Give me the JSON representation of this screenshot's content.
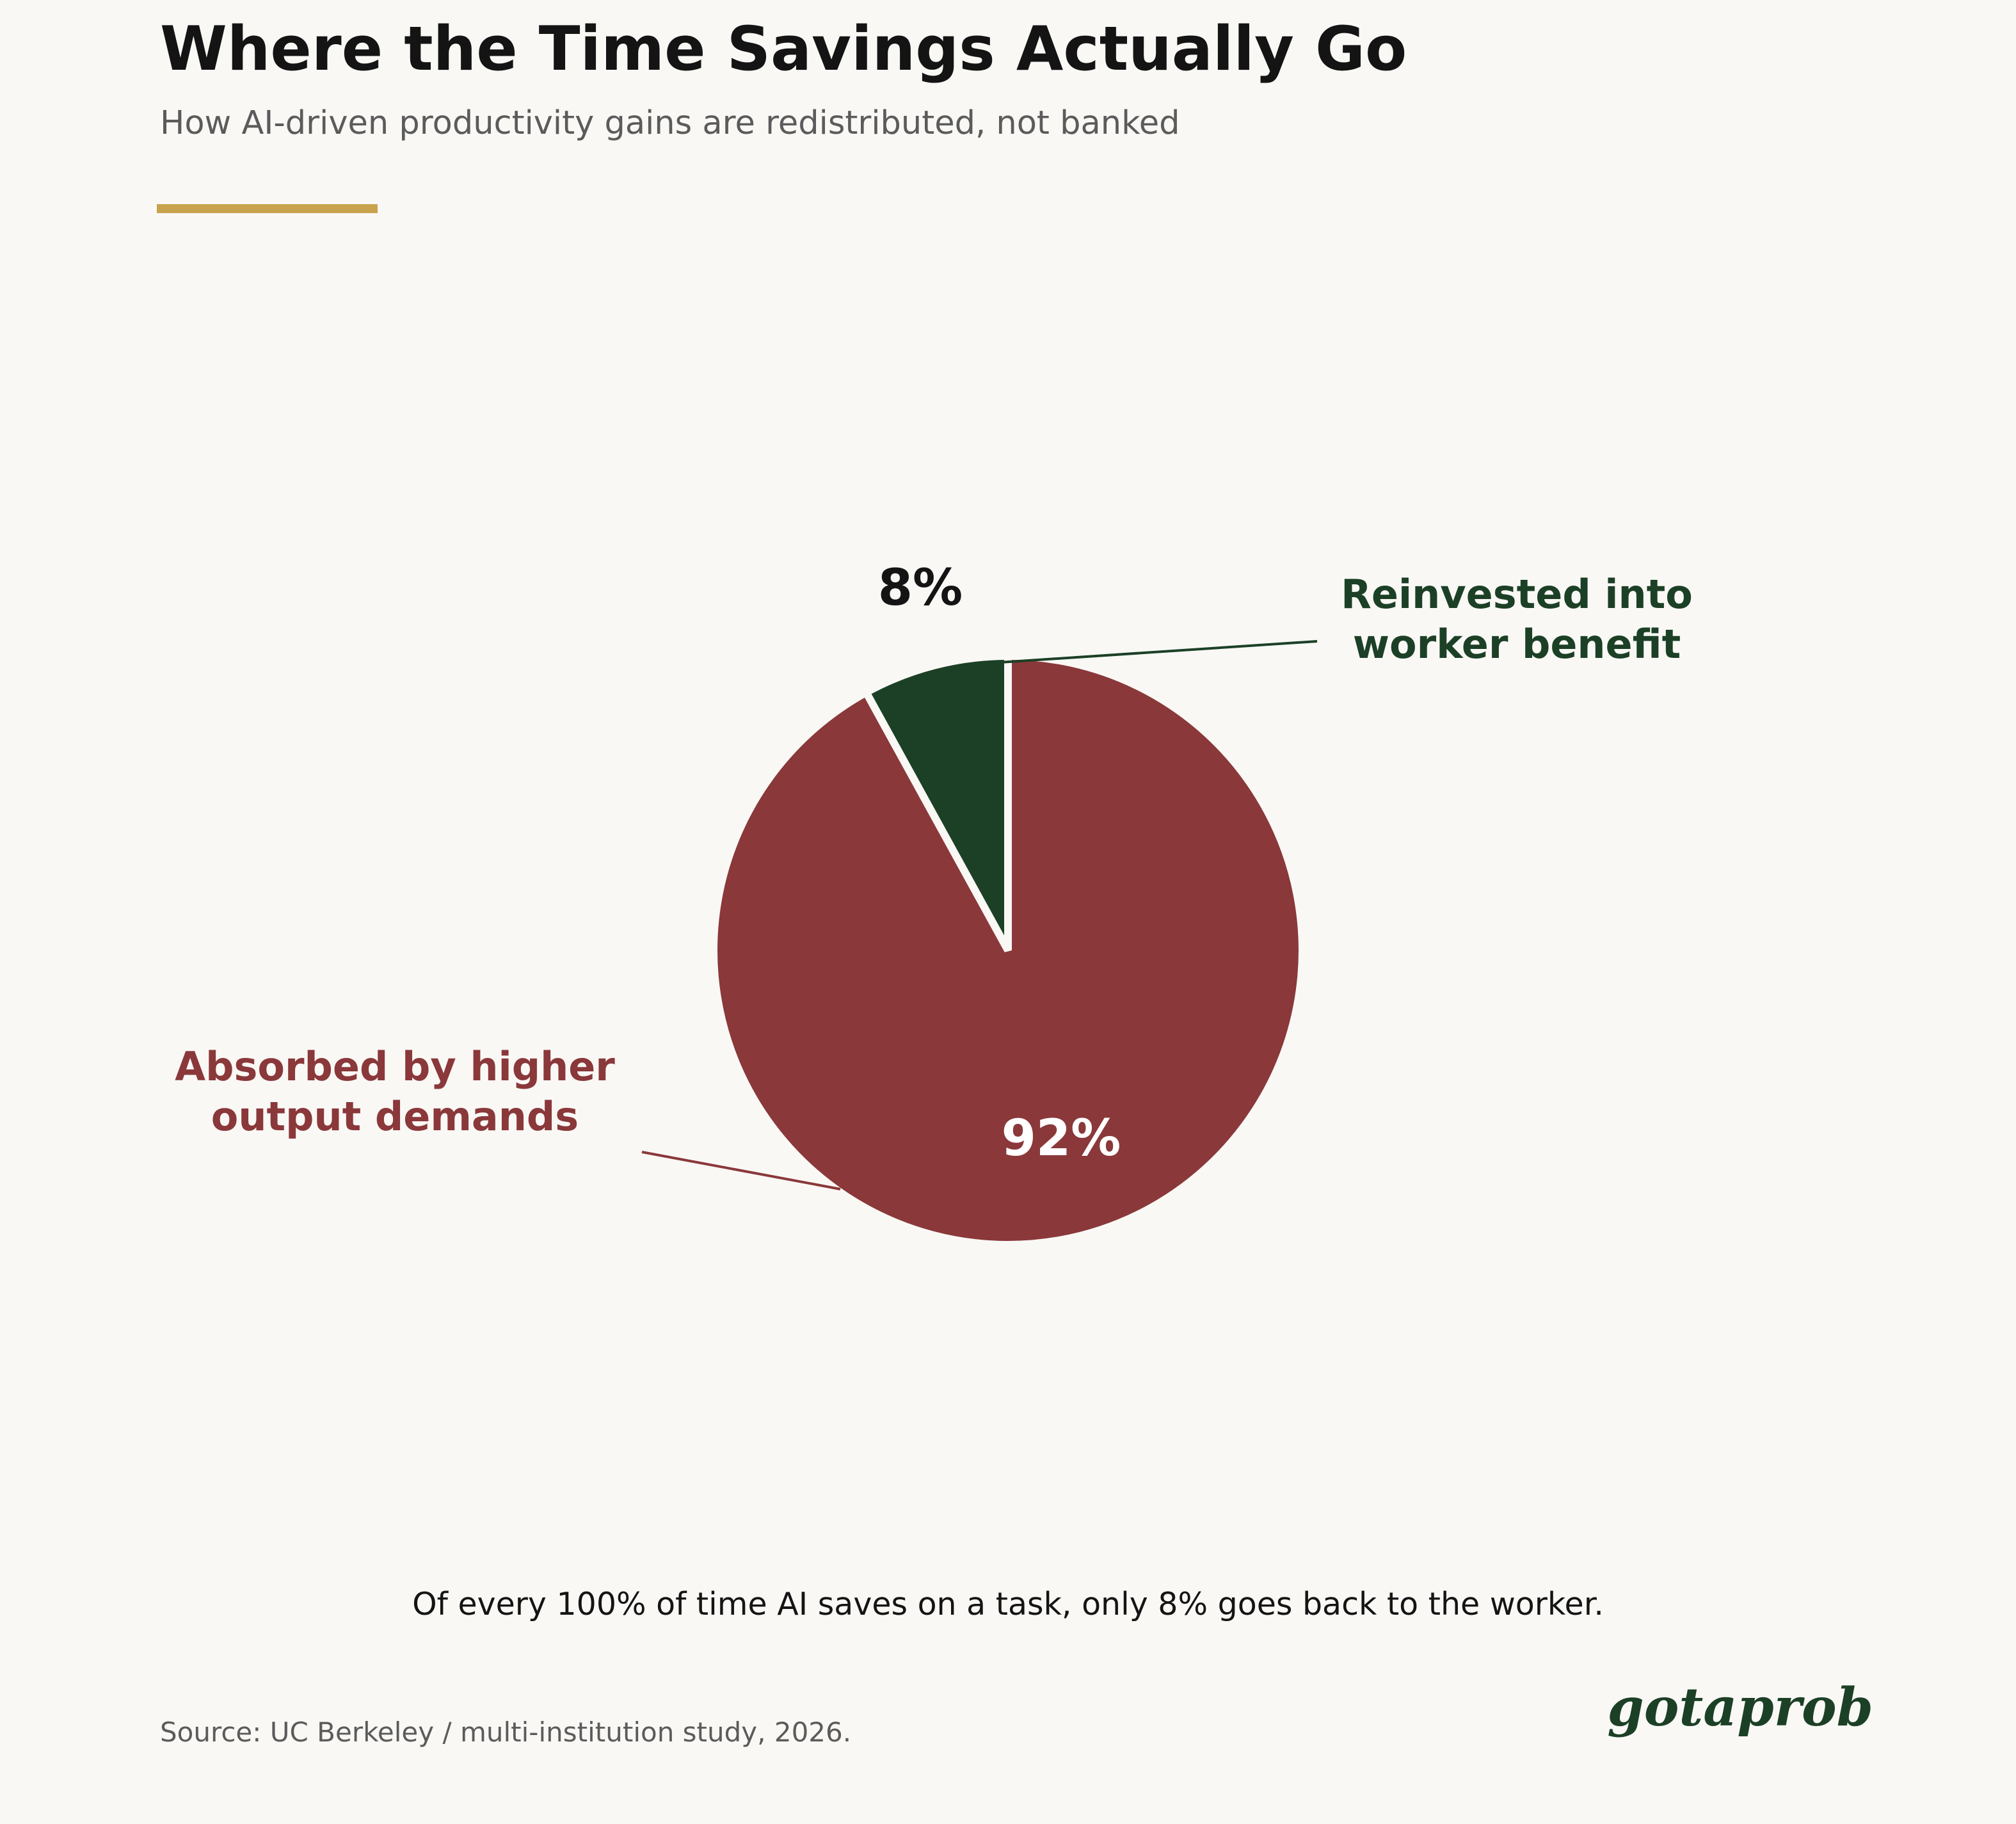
{
  "title": "Where the Time Savings Actually Go",
  "subtitle": "How AI-driven productivity gains are redistributed, not banked",
  "caption": "Of every 100% of time AI saves on a task, only 8% goes back to the worker.",
  "source": "Source: UC Berkeley / multi-institution study, 2026.",
  "brand": "gotaprob",
  "colors": {
    "background": "#f9f8f5",
    "accent": "#c9a24e",
    "absorbed": "#8a383a",
    "reinvested": "#1c4026",
    "text": "#141414",
    "muted": "#5b5b5b",
    "white": "#ffffff"
  },
  "chart_data": {
    "type": "pie",
    "start": "12 o'clock",
    "direction": "counterclockwise",
    "slices": [
      {
        "label": "Reinvested into worker benefit",
        "label_lines": [
          "Reinvested into",
          "worker benefit"
        ],
        "value": 8,
        "value_label": "8%",
        "color": "#1c4026",
        "value_label_color": "#141414"
      },
      {
        "label": "Absorbed by higher output demands",
        "label_lines": [
          "Absorbed by higher",
          "output demands"
        ],
        "value": 92,
        "value_label": "92%",
        "color": "#8a383a",
        "value_label_color": "#ffffff"
      }
    ]
  }
}
